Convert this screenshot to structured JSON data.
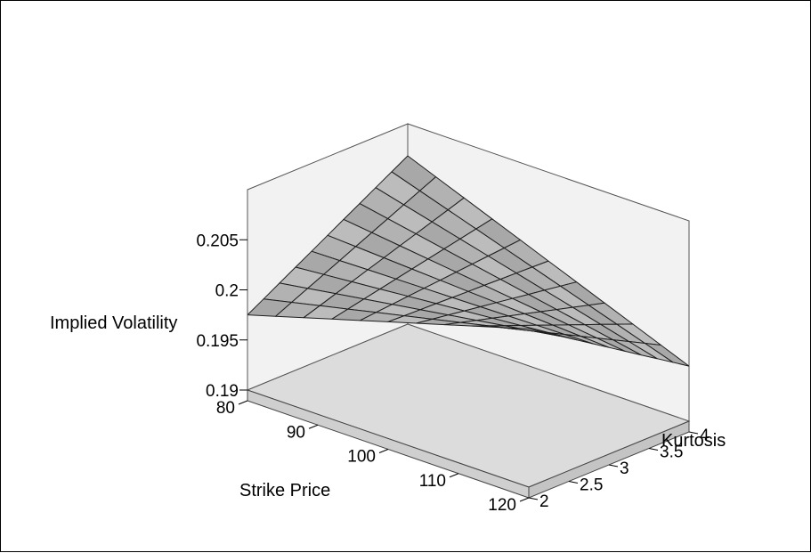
{
  "chart_data": {
    "type": "surface",
    "title": "",
    "zlabel": "Implied Volatility",
    "xlabel": "Strike Price",
    "ylabel": "Kurtosis",
    "x_ticks": [
      "80",
      "90",
      "100",
      "110",
      "120"
    ],
    "y_ticks": [
      "2",
      "2.5",
      "3",
      "3.5",
      "4"
    ],
    "z_ticks": [
      "0.19",
      "0.195",
      "0.2",
      "0.205"
    ],
    "xlim": [
      80,
      120
    ],
    "ylim": [
      2,
      4
    ],
    "zlim": [
      0.19,
      0.21
    ],
    "grid": false,
    "x": [
      80,
      84,
      88,
      92,
      96,
      100,
      104,
      108,
      112,
      116,
      120
    ],
    "y": [
      2,
      2.2,
      2.4,
      2.6,
      2.8,
      3,
      3.2,
      3.4,
      3.6,
      3.8,
      4
    ],
    "corner_values": {
      "x80_y2": 0.1975,
      "x120_y2": 0.2058,
      "x80_y4": 0.2068,
      "x120_y4": 0.1955
    },
    "surface_color": "#b4b4b4",
    "floor_color": "#dcdcdc",
    "wall_color": "#f2f2f2"
  }
}
